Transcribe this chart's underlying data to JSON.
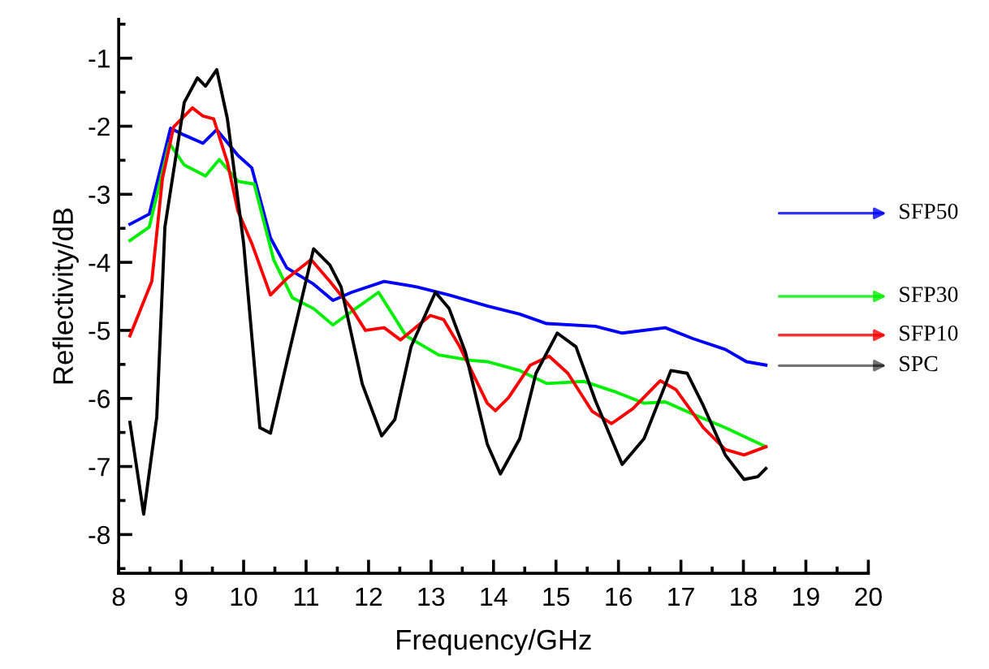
{
  "chart_data": {
    "type": "line",
    "xlabel": "Frequency/GHz",
    "ylabel": "Reflectivity/dB",
    "xlim": [
      8,
      20
    ],
    "xticks": [
      8,
      9,
      10,
      11,
      12,
      13,
      14,
      15,
      16,
      17,
      18,
      19,
      20
    ],
    "ylim": [
      -8.57,
      -0.43
    ],
    "yticks": [
      -8,
      -7,
      -6,
      -5,
      -4,
      -3,
      -2,
      -1
    ],
    "grid": false,
    "legend": "right",
    "marker": "none",
    "line_style": "solid",
    "series": [
      {
        "name": "SFP50",
        "color": "#0000ff",
        "x": [
          8.18,
          8.49,
          8.83,
          9.05,
          9.35,
          9.57,
          9.91,
          10.13,
          10.43,
          10.69,
          11.12,
          11.43,
          11.73,
          12.25,
          12.77,
          13.29,
          13.9,
          14.42,
          14.85,
          15.63,
          16.06,
          16.75,
          17.19,
          17.71,
          18.05,
          18.36
        ],
        "values": [
          -3.44,
          -3.29,
          -2.03,
          -2.13,
          -2.25,
          -2.05,
          -2.43,
          -2.61,
          -3.64,
          -4.08,
          -4.32,
          -4.56,
          -4.44,
          -4.28,
          -4.36,
          -4.48,
          -4.64,
          -4.76,
          -4.9,
          -4.94,
          -5.04,
          -4.96,
          -5.12,
          -5.28,
          -5.46,
          -5.51
        ]
      },
      {
        "name": "SFP30",
        "color": "#00ee00",
        "x": [
          8.18,
          8.49,
          8.81,
          9.05,
          9.39,
          9.61,
          9.91,
          10.17,
          10.48,
          10.78,
          11.12,
          11.43,
          11.73,
          12.16,
          12.6,
          13.12,
          13.64,
          13.9,
          14.42,
          14.85,
          15.45,
          15.97,
          16.41,
          16.75,
          17.19,
          17.71,
          18.36
        ],
        "values": [
          -3.68,
          -3.48,
          -2.25,
          -2.57,
          -2.73,
          -2.49,
          -2.81,
          -2.85,
          -3.96,
          -4.52,
          -4.68,
          -4.92,
          -4.72,
          -4.44,
          -5.08,
          -5.36,
          -5.44,
          -5.46,
          -5.59,
          -5.78,
          -5.75,
          -5.91,
          -6.07,
          -6.05,
          -6.23,
          -6.43,
          -6.71
        ]
      },
      {
        "name": "SFP10",
        "color": "#ff0000",
        "x": [
          8.18,
          8.53,
          8.7,
          8.88,
          9.18,
          9.35,
          9.52,
          9.74,
          9.91,
          10.13,
          10.43,
          10.69,
          11.08,
          11.38,
          11.73,
          11.95,
          12.25,
          12.51,
          12.99,
          13.2,
          13.46,
          13.9,
          14.03,
          14.24,
          14.59,
          14.89,
          15.19,
          15.58,
          15.89,
          16.23,
          16.67,
          16.92,
          17.36,
          17.71,
          18.01,
          18.36
        ],
        "values": [
          -5.08,
          -4.28,
          -2.77,
          -2.01,
          -1.73,
          -1.85,
          -1.89,
          -2.53,
          -3.25,
          -3.72,
          -4.48,
          -4.24,
          -3.96,
          -4.28,
          -4.68,
          -5.0,
          -4.96,
          -5.14,
          -4.78,
          -4.84,
          -5.24,
          -6.07,
          -6.18,
          -5.99,
          -5.51,
          -5.38,
          -5.63,
          -6.19,
          -6.37,
          -6.15,
          -5.74,
          -5.87,
          -6.43,
          -6.75,
          -6.83,
          -6.71
        ]
      },
      {
        "name": "SPC",
        "color": "#000000",
        "x": [
          8.18,
          8.4,
          8.61,
          8.74,
          9.05,
          9.26,
          9.39,
          9.57,
          9.74,
          10.0,
          10.26,
          10.43,
          10.69,
          11.12,
          11.38,
          11.56,
          11.9,
          12.21,
          12.42,
          12.68,
          13.07,
          13.29,
          13.55,
          13.9,
          14.11,
          14.42,
          14.68,
          15.02,
          15.32,
          15.63,
          16.06,
          16.41,
          16.84,
          17.1,
          17.36,
          17.71,
          18.01,
          18.23,
          18.36
        ],
        "values": [
          -6.35,
          -7.7,
          -6.27,
          -3.48,
          -1.65,
          -1.29,
          -1.41,
          -1.17,
          -1.89,
          -3.72,
          -6.43,
          -6.51,
          -5.47,
          -3.8,
          -4.04,
          -4.36,
          -5.79,
          -6.55,
          -6.31,
          -5.24,
          -4.44,
          -4.68,
          -5.32,
          -6.67,
          -7.11,
          -6.59,
          -5.63,
          -5.04,
          -5.24,
          -6.03,
          -6.97,
          -6.59,
          -5.59,
          -5.63,
          -6.11,
          -6.83,
          -7.19,
          -7.15,
          -7.03
        ]
      }
    ]
  }
}
